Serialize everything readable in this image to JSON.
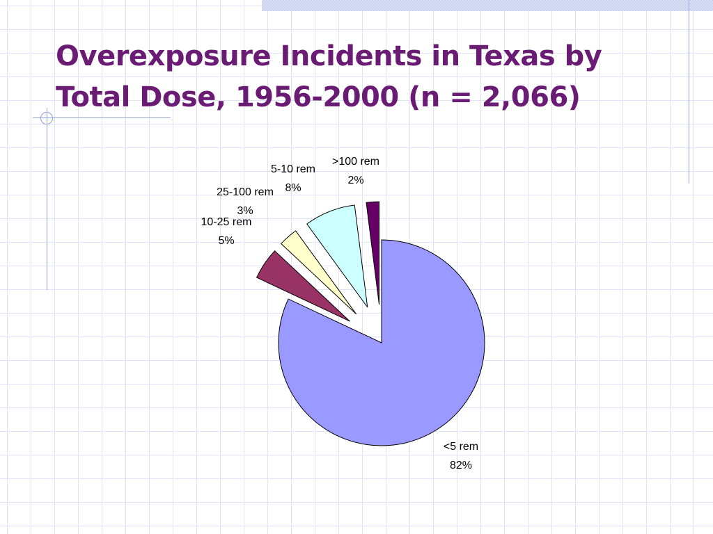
{
  "slide": {
    "title_lines": [
      "Overexposure Incidents in Texas by",
      "Total Dose, 1956-2000 (n = 2,066)"
    ]
  },
  "chart_data": {
    "type": "pie",
    "title": "Overexposure Incidents in Texas by Total Dose, 1956-2000 (n = 2,066)",
    "legend": "none",
    "exploded": true,
    "slices": [
      {
        "label": "<5 rem",
        "percent_label": "82%",
        "value": 82,
        "color": "#9999ff",
        "exploded": false
      },
      {
        "label": "10-25 rem",
        "percent_label": "5%",
        "value": 5,
        "color": "#993366",
        "exploded": true
      },
      {
        "label": "25-100 rem",
        "percent_label": "3%",
        "value": 3,
        "color": "#ffffcc",
        "exploded": true
      },
      {
        "label": "5-10 rem",
        "percent_label": "8%",
        "value": 8,
        "color": "#ccffff",
        "exploded": true
      },
      {
        "label": ">100 rem",
        "percent_label": "2%",
        "value": 2,
        "color": "#660066",
        "exploded": true
      }
    ]
  }
}
